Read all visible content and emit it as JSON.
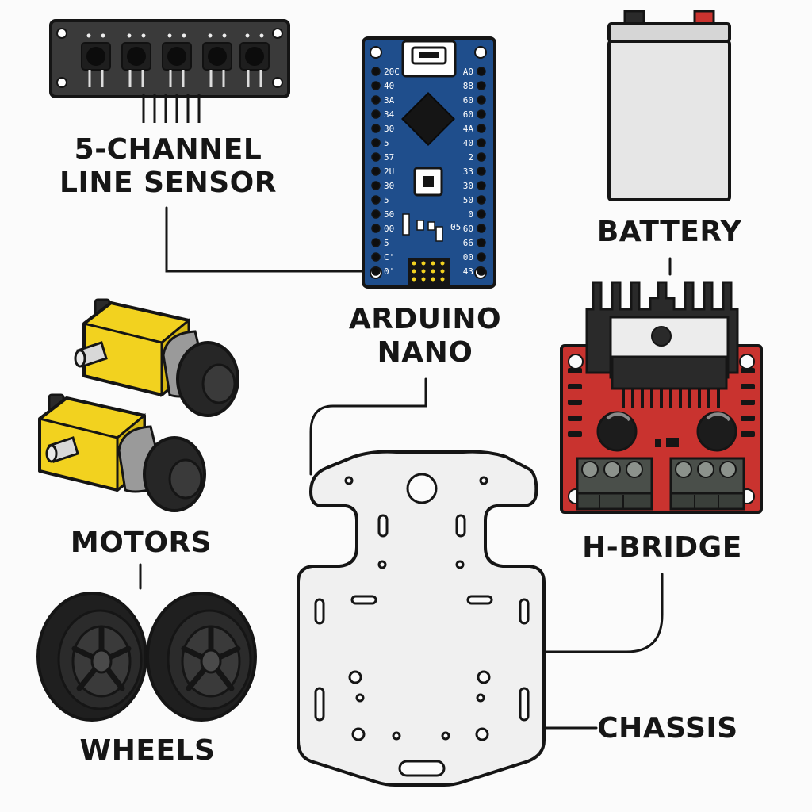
{
  "labels": {
    "line_sensor": [
      "5-CHANNEL",
      "LINE SENSOR"
    ],
    "arduino": [
      "ARDUINO",
      "NANO"
    ],
    "battery": "BATTERY",
    "motors": "MOTORS",
    "hbridge": "H-BRIDGE",
    "wheels": "WHEELS",
    "chassis": "CHASSIS"
  },
  "nano_pins": {
    "left": [
      "20C",
      "40",
      "3A",
      "34",
      "30",
      "5",
      "57",
      "2U",
      "30",
      "5",
      "50",
      "00",
      "5",
      "C'",
      "0'"
    ],
    "right": [
      "A0",
      "88",
      "60",
      "60",
      "4A",
      "40",
      "2",
      "33",
      "30",
      "50",
      "0",
      "60",
      "66",
      "00",
      "43"
    ],
    "extra": "05"
  },
  "colors": {
    "outline": "#151515",
    "sensor_board": "#3a3a3a",
    "nano_board": "#1f4e8c",
    "motor_yellow": "#f2d21f",
    "hbridge_red": "#c9332f",
    "battery_body": "#e6e6e6",
    "chassis": "#f0f0f0",
    "terminal_green": "#4a4f4a"
  }
}
